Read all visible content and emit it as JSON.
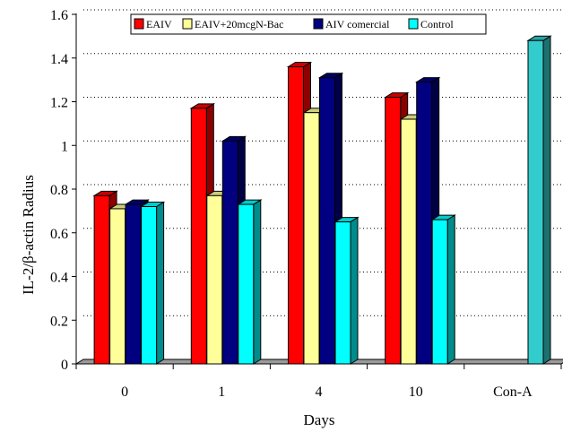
{
  "chart_data": {
    "type": "bar",
    "title": "",
    "xlabel": "Days",
    "ylabel": "IL-2/β-actin Radius",
    "ylim": [
      0,
      1.6
    ],
    "yticks": [
      "0",
      "0.2",
      "0.4",
      "0.6",
      "0.8",
      "1",
      "1.2",
      "1.4",
      "1.6"
    ],
    "grid": "horizontal dotted",
    "legend_position": "top",
    "categories": [
      "0",
      "1",
      "4",
      "10",
      "Con-A"
    ],
    "series": [
      {
        "name": "EAIV",
        "color": "#ff0000",
        "values": [
          0.77,
          1.17,
          1.36,
          1.22,
          null
        ]
      },
      {
        "name": "EAIV+20mcgN-Bac",
        "color": "#ffff99",
        "values": [
          0.71,
          0.77,
          1.15,
          1.12,
          null
        ]
      },
      {
        "name": "AIV comercial",
        "color": "#000080",
        "values": [
          0.73,
          1.02,
          1.31,
          1.29,
          null
        ]
      },
      {
        "name": "Control",
        "color": "#00ffff",
        "values": [
          0.72,
          0.73,
          0.65,
          0.66,
          null
        ]
      },
      {
        "name": "",
        "color": "#33cccc",
        "values": [
          null,
          null,
          null,
          null,
          1.48
        ]
      }
    ]
  }
}
